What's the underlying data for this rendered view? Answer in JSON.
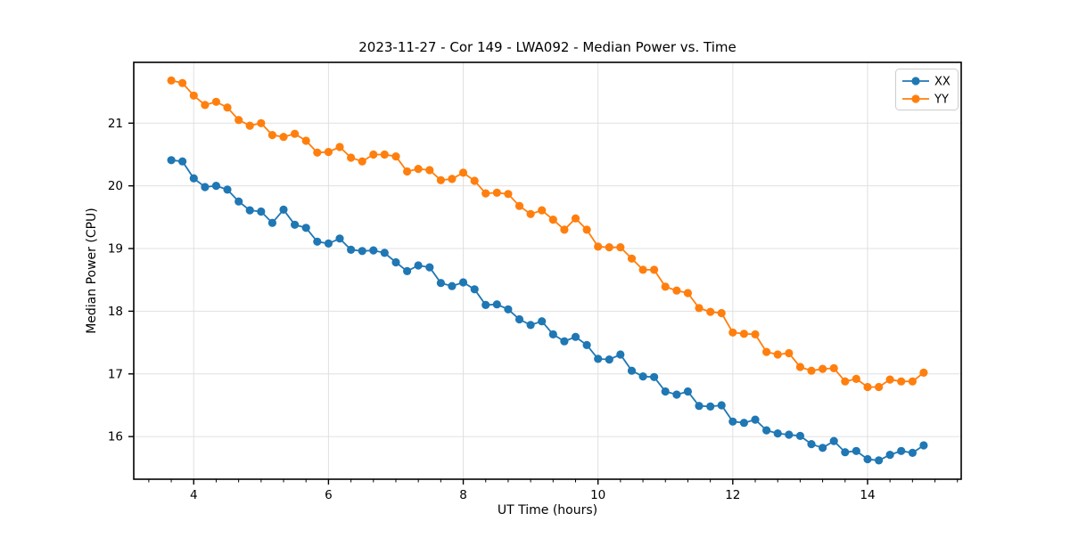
{
  "chart_data": {
    "type": "line",
    "title": "2023-11-27 - Cor 149 - LWA092 - Median Power vs. Time",
    "xlabel": "UT Time (hours)",
    "ylabel": "Median Power (CPU)",
    "xlim": [
      3.11,
      15.39
    ],
    "ylim": [
      15.32,
      21.97
    ],
    "xticks": [
      4,
      6,
      8,
      10,
      12,
      14
    ],
    "yticks": [
      16,
      17,
      18,
      19,
      20,
      21
    ],
    "x_minor_divisions_per_major": 6,
    "grid": true,
    "legend_position": "upper right",
    "marker": "o",
    "x": [
      3.667,
      3.833,
      4.0,
      4.167,
      4.333,
      4.5,
      4.667,
      4.833,
      5.0,
      5.167,
      5.333,
      5.5,
      5.667,
      5.833,
      6.0,
      6.167,
      6.333,
      6.5,
      6.667,
      6.833,
      7.0,
      7.167,
      7.333,
      7.5,
      7.667,
      7.833,
      8.0,
      8.167,
      8.333,
      8.5,
      8.667,
      8.833,
      9.0,
      9.167,
      9.333,
      9.5,
      9.667,
      9.833,
      10.0,
      10.167,
      10.333,
      10.5,
      10.667,
      10.833,
      11.0,
      11.167,
      11.333,
      11.5,
      11.667,
      11.833,
      12.0,
      12.167,
      12.333,
      12.5,
      12.667,
      12.833,
      13.0,
      13.167,
      13.333,
      13.5,
      13.667,
      13.833,
      14.0,
      14.167,
      14.333,
      14.5,
      14.667,
      14.833
    ],
    "series": [
      {
        "name": "XX",
        "color": "#1f77b4",
        "values": [
          20.41,
          20.39,
          20.12,
          19.98,
          20.0,
          19.94,
          19.75,
          19.61,
          19.59,
          19.41,
          19.62,
          19.38,
          19.33,
          19.11,
          19.08,
          19.16,
          18.98,
          18.96,
          18.97,
          18.93,
          18.78,
          18.64,
          18.73,
          18.7,
          18.45,
          18.4,
          18.46,
          18.35,
          18.1,
          18.11,
          18.03,
          17.87,
          17.78,
          17.84,
          17.63,
          17.52,
          17.59,
          17.46,
          17.24,
          17.23,
          17.31,
          17.05,
          16.96,
          16.95,
          16.72,
          16.67,
          16.72,
          16.49,
          16.48,
          16.5,
          16.24,
          16.22,
          16.27,
          16.1,
          16.05,
          16.03,
          16.01,
          15.88,
          15.82,
          15.93,
          15.75,
          15.77,
          15.64,
          15.62,
          15.71,
          15.77,
          15.74,
          15.86
        ]
      },
      {
        "name": "YY",
        "color": "#ff7f0e",
        "values": [
          21.68,
          21.64,
          21.44,
          21.29,
          21.34,
          21.25,
          21.05,
          20.96,
          21.0,
          20.81,
          20.78,
          20.83,
          20.72,
          20.53,
          20.54,
          20.62,
          20.45,
          20.39,
          20.5,
          20.5,
          20.47,
          20.23,
          20.27,
          20.25,
          20.09,
          20.11,
          20.21,
          20.08,
          19.88,
          19.89,
          19.87,
          19.68,
          19.55,
          19.61,
          19.46,
          19.3,
          19.48,
          19.3,
          19.03,
          19.02,
          19.02,
          18.84,
          18.66,
          18.66,
          18.39,
          18.33,
          18.29,
          18.05,
          17.99,
          17.97,
          17.66,
          17.64,
          17.63,
          17.35,
          17.31,
          17.33,
          17.11,
          17.05,
          17.08,
          17.09,
          16.88,
          16.92,
          16.79,
          16.79,
          16.91,
          16.88,
          16.88,
          17.02
        ]
      }
    ],
    "style": {
      "grid_color": "#e0e0e0",
      "spine_color": "#000000",
      "legend_border_color": "#cccccc",
      "background": "#ffffff"
    }
  }
}
